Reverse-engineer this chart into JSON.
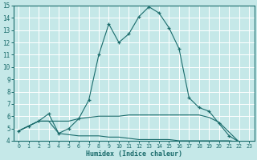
{
  "title": "",
  "xlabel": "Humidex (Indice chaleur)",
  "ylabel": "",
  "xlim": [
    -0.5,
    23.5
  ],
  "ylim": [
    4,
    15
  ],
  "yticks": [
    4,
    5,
    6,
    7,
    8,
    9,
    10,
    11,
    12,
    13,
    14,
    15
  ],
  "xticks": [
    0,
    1,
    2,
    3,
    4,
    5,
    6,
    7,
    8,
    9,
    10,
    11,
    12,
    13,
    14,
    15,
    16,
    17,
    18,
    19,
    20,
    21,
    22,
    23
  ],
  "bg_color": "#c5e8e8",
  "grid_color": "#ffffff",
  "line_color": "#1a6b6b",
  "series1_x": [
    0,
    1,
    2,
    3,
    4,
    5,
    6,
    7,
    8,
    9,
    10,
    11,
    12,
    13,
    14,
    15,
    16,
    17,
    18,
    19,
    20,
    21,
    22,
    23
  ],
  "series1_y": [
    4.8,
    5.2,
    5.6,
    6.2,
    4.6,
    5.0,
    5.8,
    7.3,
    11.0,
    13.5,
    12.0,
    12.7,
    14.1,
    14.9,
    14.4,
    13.2,
    11.5,
    7.5,
    6.7,
    6.4,
    5.4,
    4.4,
    3.9,
    3.9
  ],
  "series2_x": [
    0,
    1,
    2,
    3,
    4,
    5,
    6,
    7,
    8,
    9,
    10,
    11,
    12,
    13,
    14,
    15,
    16,
    17,
    18,
    19,
    20,
    21,
    22,
    23
  ],
  "series2_y": [
    4.8,
    5.2,
    5.6,
    5.6,
    5.6,
    5.6,
    5.8,
    5.9,
    6.0,
    6.0,
    6.0,
    6.1,
    6.1,
    6.1,
    6.1,
    6.1,
    6.1,
    6.1,
    6.1,
    5.9,
    5.5,
    4.7,
    3.9,
    3.9
  ],
  "series3_x": [
    0,
    1,
    2,
    3,
    4,
    5,
    6,
    7,
    8,
    9,
    10,
    11,
    12,
    13,
    14,
    15,
    16,
    17,
    18,
    19,
    20,
    21,
    22,
    23
  ],
  "series3_y": [
    4.8,
    5.2,
    5.6,
    5.6,
    4.6,
    4.5,
    4.4,
    4.4,
    4.4,
    4.3,
    4.3,
    4.2,
    4.1,
    4.1,
    4.1,
    4.1,
    4.0,
    4.0,
    4.0,
    4.0,
    4.0,
    4.0,
    3.9,
    3.9
  ]
}
